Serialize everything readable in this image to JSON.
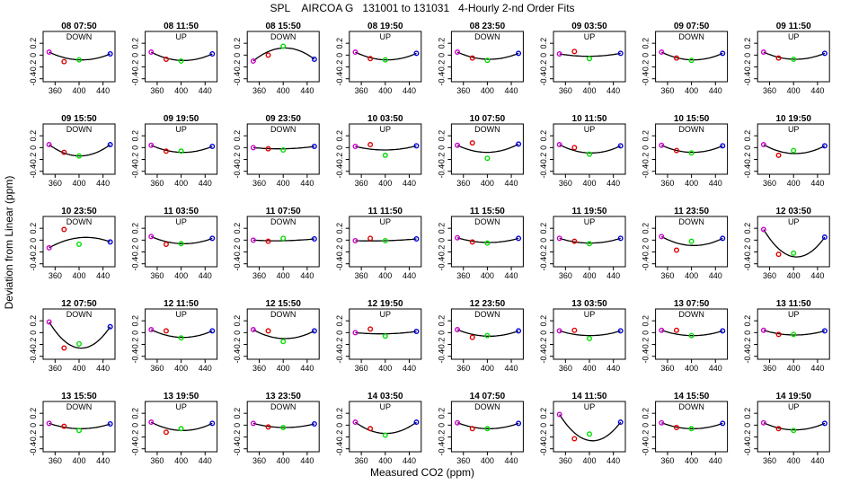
{
  "title": "SPL    AIRCOA G   131001 to 131031   4-Hourly 2-nd Order Fits",
  "colors": {
    "axis": "#000000",
    "curve": "#000000",
    "p1": "#cc00cc",
    "p2": "#dd0000",
    "p3": "#00dd00",
    "p4": "#0000dd"
  },
  "chart_data": {
    "type": "scatter",
    "title": "SPL    AIRCOA G   131001 to 131031   4-Hourly 2-nd Order Fits",
    "xlabel": "Measured CO2 (ppm)",
    "ylabel": "Deviation from Linear (ppm)",
    "xlim": [
      340,
      460
    ],
    "ylim": [
      -0.45,
      0.4
    ],
    "x_ticks": [
      360,
      400,
      440
    ],
    "y_ticks": [
      0.2,
      0,
      -0.2,
      -0.4
    ],
    "x_tick_labels": [
      "360",
      "400",
      "440"
    ],
    "y_tick_labels": [
      "0.2",
      "0",
      "-0.2",
      "-0.4"
    ],
    "grid": false,
    "standard_co2": [
      350,
      375,
      400,
      452
    ],
    "panels": [
      {
        "title": "08 07:50",
        "label": "DOWN",
        "points": [
          0.05,
          -0.11,
          -0.08,
          0.02
        ],
        "curve": [
          0.05,
          -0.08,
          0.02
        ]
      },
      {
        "title": "08 11:50",
        "label": "UP",
        "points": [
          0.05,
          -0.07,
          -0.1,
          0.02
        ],
        "curve": [
          0.05,
          -0.09,
          0.02
        ]
      },
      {
        "title": "08 15:50",
        "label": "DOWN",
        "points": [
          -0.1,
          0.0,
          0.15,
          -0.07
        ],
        "curve": [
          -0.1,
          0.12,
          -0.07
        ]
      },
      {
        "title": "08 19:50",
        "label": "UP",
        "points": [
          0.05,
          -0.06,
          -0.08,
          0.03
        ],
        "curve": [
          0.05,
          -0.08,
          0.03
        ]
      },
      {
        "title": "08 23:50",
        "label": "DOWN",
        "points": [
          0.05,
          -0.05,
          -0.09,
          0.03
        ],
        "curve": [
          0.05,
          -0.07,
          0.03
        ]
      },
      {
        "title": "09 03:50",
        "label": "UP",
        "points": [
          0.02,
          0.06,
          -0.06,
          0.03
        ],
        "curve": [
          0.02,
          -0.02,
          0.03
        ]
      },
      {
        "title": "09 07:50",
        "label": "DOWN",
        "points": [
          0.05,
          -0.05,
          -0.09,
          0.03
        ],
        "curve": [
          0.05,
          -0.08,
          0.03
        ]
      },
      {
        "title": "09 11:50",
        "label": "UP",
        "points": [
          0.05,
          -0.05,
          -0.07,
          0.03
        ],
        "curve": [
          0.05,
          -0.07,
          0.03
        ]
      },
      {
        "title": "09 15:50",
        "label": "DOWN",
        "points": [
          0.05,
          -0.08,
          -0.14,
          0.05
        ],
        "curve": [
          0.05,
          -0.14,
          0.05
        ]
      },
      {
        "title": "09 19:50",
        "label": "UP",
        "points": [
          0.04,
          -0.06,
          -0.06,
          0.02
        ],
        "curve": [
          0.04,
          -0.08,
          0.02
        ]
      },
      {
        "title": "09 23:50",
        "label": "DOWN",
        "points": [
          0.0,
          -0.02,
          -0.04,
          0.02
        ],
        "curve": [
          0.0,
          -0.02,
          0.02
        ]
      },
      {
        "title": "10 03:50",
        "label": "UP",
        "points": [
          0.02,
          0.05,
          -0.13,
          0.03
        ],
        "curve": [
          0.02,
          -0.04,
          0.03
        ]
      },
      {
        "title": "10 07:50",
        "label": "DOWN",
        "points": [
          0.04,
          0.08,
          -0.18,
          0.06
        ],
        "curve": [
          0.04,
          -0.08,
          0.06
        ]
      },
      {
        "title": "10 11:50",
        "label": "UP",
        "points": [
          0.05,
          0.0,
          -0.11,
          0.03
        ],
        "curve": [
          0.05,
          -0.09,
          0.03
        ]
      },
      {
        "title": "10 15:50",
        "label": "DOWN",
        "points": [
          0.04,
          -0.05,
          -0.09,
          0.03
        ],
        "curve": [
          0.04,
          -0.08,
          0.03
        ]
      },
      {
        "title": "10 19:50",
        "label": "UP",
        "points": [
          0.05,
          -0.13,
          -0.05,
          0.03
        ],
        "curve": [
          0.05,
          -0.1,
          0.03
        ]
      },
      {
        "title": "10 23:50",
        "label": "DOWN",
        "points": [
          -0.13,
          0.18,
          -0.07,
          -0.03
        ],
        "curve": [
          -0.13,
          0.04,
          -0.03
        ]
      },
      {
        "title": "11 03:50",
        "label": "UP",
        "points": [
          0.06,
          -0.07,
          -0.06,
          0.03
        ],
        "curve": [
          0.06,
          -0.06,
          0.03
        ]
      },
      {
        "title": "11 07:50",
        "label": "DOWN",
        "points": [
          0.0,
          -0.02,
          0.03,
          0.02
        ],
        "curve": [
          0.0,
          -0.01,
          0.02
        ]
      },
      {
        "title": "11 11:50",
        "label": "UP",
        "points": [
          -0.01,
          0.03,
          -0.01,
          0.02
        ],
        "curve": [
          -0.01,
          -0.01,
          0.02
        ]
      },
      {
        "title": "11 15:50",
        "label": "DOWN",
        "points": [
          0.04,
          -0.03,
          -0.05,
          0.03
        ],
        "curve": [
          0.04,
          -0.04,
          0.03
        ]
      },
      {
        "title": "11 19:50",
        "label": "UP",
        "points": [
          0.03,
          -0.02,
          -0.06,
          0.03
        ],
        "curve": [
          0.03,
          -0.05,
          0.03
        ]
      },
      {
        "title": "11 23:50",
        "label": "DOWN",
        "points": [
          0.06,
          -0.17,
          -0.02,
          0.03
        ],
        "curve": [
          0.06,
          -0.09,
          0.03
        ]
      },
      {
        "title": "12 03:50",
        "label": "UP",
        "points": [
          0.18,
          -0.24,
          -0.22,
          0.05
        ],
        "curve": [
          0.18,
          -0.28,
          0.05
        ]
      },
      {
        "title": "12 07:50",
        "label": "DOWN",
        "points": [
          0.18,
          -0.26,
          -0.19,
          0.1
        ],
        "curve": [
          0.18,
          -0.26,
          0.1
        ]
      },
      {
        "title": "12 11:50",
        "label": "UP",
        "points": [
          0.05,
          0.03,
          -0.09,
          0.03
        ],
        "curve": [
          0.05,
          -0.08,
          0.03
        ]
      },
      {
        "title": "12 15:50",
        "label": "DOWN",
        "points": [
          0.05,
          0.03,
          -0.15,
          0.03
        ],
        "curve": [
          0.05,
          -0.1,
          0.03
        ]
      },
      {
        "title": "12 19:50",
        "label": "UP",
        "points": [
          0.0,
          0.06,
          -0.06,
          0.02
        ],
        "curve": [
          0.0,
          -0.02,
          0.02
        ]
      },
      {
        "title": "12 23:50",
        "label": "DOWN",
        "points": [
          0.05,
          -0.08,
          -0.05,
          0.03
        ],
        "curve": [
          0.05,
          -0.06,
          0.03
        ]
      },
      {
        "title": "13 03:50",
        "label": "UP",
        "points": [
          0.03,
          0.04,
          -0.1,
          0.03
        ],
        "curve": [
          0.03,
          -0.05,
          0.03
        ]
      },
      {
        "title": "13 07:50",
        "label": "DOWN",
        "points": [
          0.04,
          0.04,
          -0.05,
          0.03
        ],
        "curve": [
          0.04,
          -0.05,
          0.03
        ]
      },
      {
        "title": "13 11:50",
        "label": "UP",
        "points": [
          0.04,
          -0.03,
          -0.03,
          0.03
        ],
        "curve": [
          0.04,
          -0.04,
          0.03
        ]
      },
      {
        "title": "13 15:50",
        "label": "DOWN",
        "points": [
          0.03,
          -0.02,
          -0.09,
          0.02
        ],
        "curve": [
          0.03,
          -0.06,
          0.02
        ]
      },
      {
        "title": "13 19:50",
        "label": "UP",
        "points": [
          0.05,
          -0.12,
          -0.06,
          0.03
        ],
        "curve": [
          0.05,
          -0.09,
          0.03
        ]
      },
      {
        "title": "13 23:50",
        "label": "DOWN",
        "points": [
          0.03,
          -0.03,
          -0.04,
          0.02
        ],
        "curve": [
          0.03,
          -0.04,
          0.02
        ]
      },
      {
        "title": "14 03:50",
        "label": "UP",
        "points": [
          0.05,
          -0.06,
          -0.17,
          0.05
        ],
        "curve": [
          0.05,
          -0.14,
          0.05
        ]
      },
      {
        "title": "14 07:50",
        "label": "DOWN",
        "points": [
          0.04,
          -0.06,
          -0.06,
          0.03
        ],
        "curve": [
          0.04,
          -0.06,
          0.03
        ]
      },
      {
        "title": "14 11:50",
        "label": "UP",
        "points": [
          0.18,
          -0.23,
          -0.15,
          0.05
        ],
        "curve": [
          0.18,
          -0.26,
          0.05
        ]
      },
      {
        "title": "14 15:50",
        "label": "DOWN",
        "points": [
          0.04,
          -0.04,
          -0.06,
          0.03
        ],
        "curve": [
          0.04,
          -0.06,
          0.03
        ]
      },
      {
        "title": "14 19:50",
        "label": "UP",
        "points": [
          0.04,
          -0.06,
          -0.09,
          0.03
        ],
        "curve": [
          0.04,
          -0.08,
          0.03
        ]
      }
    ]
  }
}
